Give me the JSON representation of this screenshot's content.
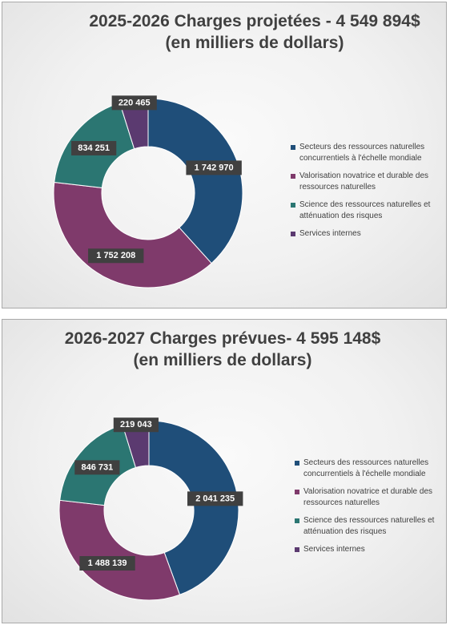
{
  "chart_data": [
    {
      "type": "pie",
      "title": "2025-2026 Charges projetées - 4 549 894$",
      "subtitle": "(en milliers de dollars)",
      "categories": [
        "Secteurs des ressources naturelles concurrentiels à l'échelle mondiale",
        "Valorisation novatrice et durable des ressources naturelles",
        "Science des ressources naturelles et atténuation des risques",
        "Services internes"
      ],
      "values": [
        1742970,
        1752208,
        834251,
        220465
      ],
      "labels": [
        "1 742 970",
        "1 752 208",
        "834 251",
        "220 465"
      ],
      "colors": [
        "#1f4e79",
        "#7f3a6b",
        "#2b7672",
        "#5b3a70"
      ],
      "legend_position": "right"
    },
    {
      "type": "pie",
      "title": "2026-2027 Charges prévues- 4 595 148$",
      "subtitle": "(en milliers de dollars)",
      "categories": [
        "Secteurs des ressources naturelles concurrentiels à l'échelle mondiale",
        "Valorisation novatrice et durable des ressources naturelles",
        "Science des ressources naturelles et atténuation des risques",
        "Services internes"
      ],
      "values": [
        2041235,
        1488139,
        846731,
        219043
      ],
      "labels": [
        "2 041 235",
        "1 488 139",
        "846 731",
        "219 043"
      ],
      "colors": [
        "#1f4e79",
        "#7f3a6b",
        "#2b7672",
        "#5b3a70"
      ],
      "legend_position": "right"
    }
  ]
}
